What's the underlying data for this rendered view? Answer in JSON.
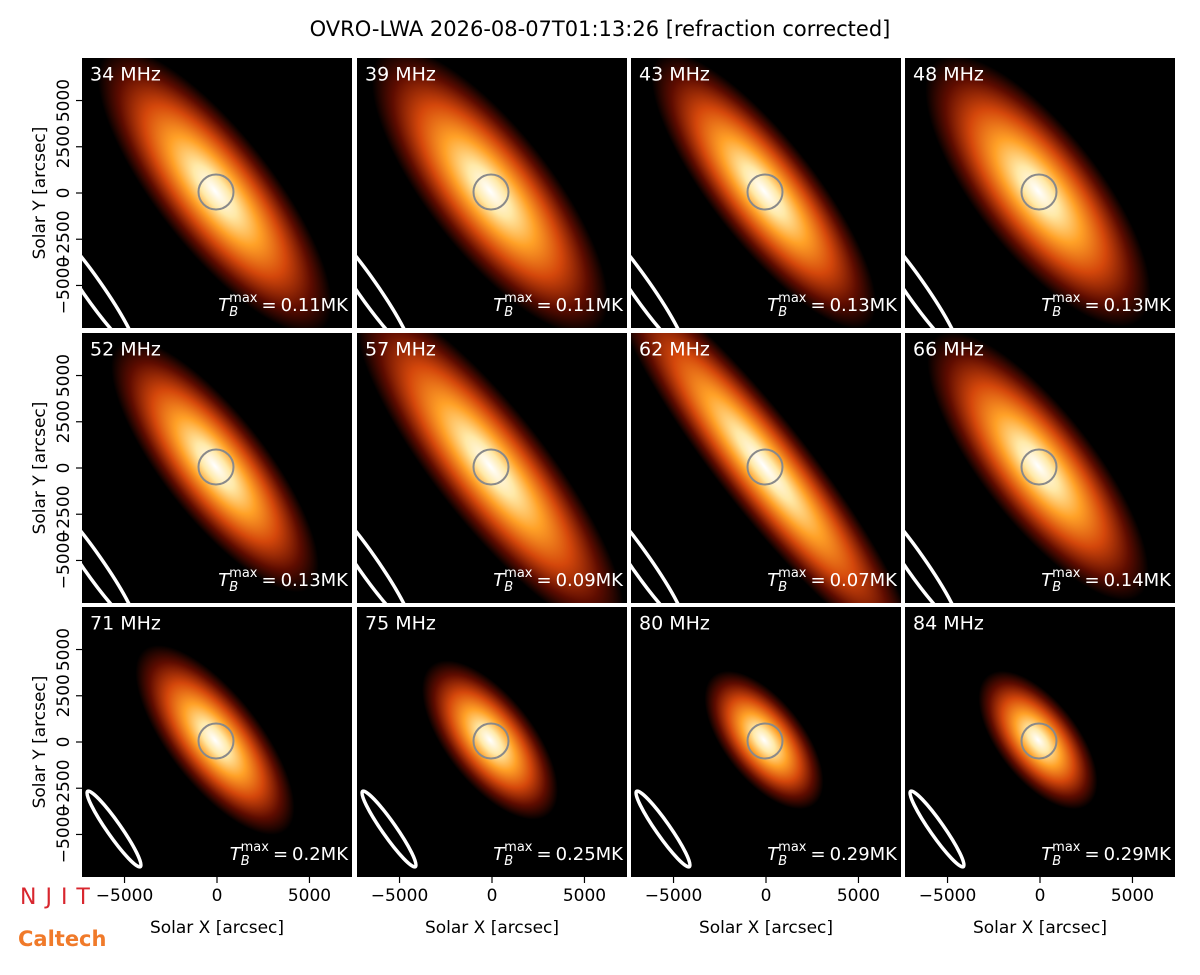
{
  "chart_data": {
    "type": "image-grid",
    "title": "OVRO-LWA 2026-08-07T01:13:26 [refraction corrected]",
    "xlabel": "Solar X [arcsec]",
    "ylabel": "Solar Y [arcsec]",
    "xlim": [
      -7300,
      7300
    ],
    "ylim": [
      -7300,
      7300
    ],
    "xticks": [
      {
        "value": -5000,
        "label": "−5000"
      },
      0,
      5000
    ],
    "yticks": [
      {
        "value": -5000,
        "label": "−5000"
      },
      {
        "value": -2500,
        "label": "−2500"
      },
      0,
      2500,
      5000
    ],
    "tb_symbol": "T",
    "tb_sub": "B",
    "tb_sup": "max",
    "tb_eq": "=",
    "panels": [
      {
        "label": "34 MHz",
        "tb_value": "0.11MK"
      },
      {
        "label": "39 MHz",
        "tb_value": "0.11MK"
      },
      {
        "label": "43 MHz",
        "tb_value": "0.13MK"
      },
      {
        "label": "48 MHz",
        "tb_value": "0.13MK"
      },
      {
        "label": "52 MHz",
        "tb_value": "0.13MK"
      },
      {
        "label": "57 MHz",
        "tb_value": "0.09MK"
      },
      {
        "label": "62 MHz",
        "tb_value": "0.07MK"
      },
      {
        "label": "66 MHz",
        "tb_value": "0.14MK"
      },
      {
        "label": "71 MHz",
        "tb_value": "0.2MK"
      },
      {
        "label": "75 MHz",
        "tb_value": "0.25MK"
      },
      {
        "label": "80 MHz",
        "tb_value": "0.29MK"
      },
      {
        "label": "84 MHz",
        "tb_value": "0.29MK"
      }
    ],
    "logos": [
      "NJIT",
      "Caltech"
    ]
  }
}
